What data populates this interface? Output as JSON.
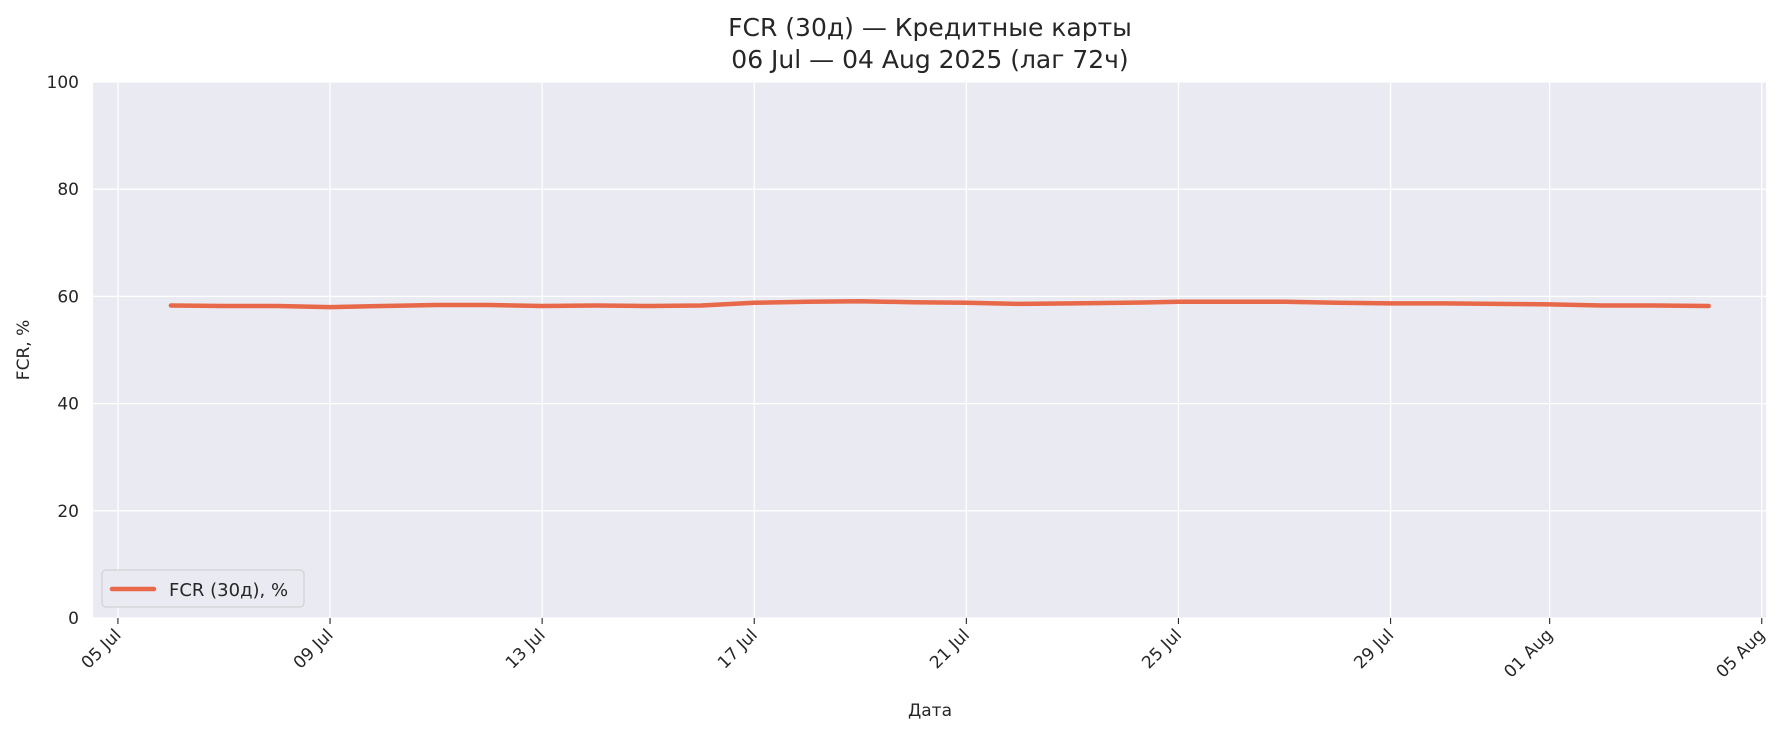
{
  "chart_data": {
    "type": "line",
    "title": "FCR (30д) — Кредитные карты",
    "subtitle": "06 Jul — 04 Aug 2025 (лаг 72ч)",
    "xlabel": "Дата",
    "ylabel": "FCR, %",
    "ylim": [
      0,
      100
    ],
    "xlim": [
      "2025-07-04",
      "2025-08-05"
    ],
    "y_ticks": [
      0,
      20,
      40,
      60,
      80,
      100
    ],
    "x_ticks": [
      {
        "date": "2025-07-05",
        "label": "05 Jul"
      },
      {
        "date": "2025-07-09",
        "label": "09 Jul"
      },
      {
        "date": "2025-07-13",
        "label": "13 Jul"
      },
      {
        "date": "2025-07-17",
        "label": "17 Jul"
      },
      {
        "date": "2025-07-21",
        "label": "21 Jul"
      },
      {
        "date": "2025-07-25",
        "label": "25 Jul"
      },
      {
        "date": "2025-07-29",
        "label": "29 Jul"
      },
      {
        "date": "2025-08-01",
        "label": "01 Aug"
      },
      {
        "date": "2025-08-05",
        "label": "05 Aug"
      }
    ],
    "grid": true,
    "legend_position": "lower-left",
    "colors": {
      "background": "#eaeaf2",
      "grid": "#ffffff",
      "series": "#e8684a"
    },
    "series": [
      {
        "name": "FCR (30д), %",
        "x": [
          "2025-07-06",
          "2025-07-07",
          "2025-07-08",
          "2025-07-09",
          "2025-07-10",
          "2025-07-11",
          "2025-07-12",
          "2025-07-13",
          "2025-07-14",
          "2025-07-15",
          "2025-07-16",
          "2025-07-17",
          "2025-07-18",
          "2025-07-19",
          "2025-07-20",
          "2025-07-21",
          "2025-07-22",
          "2025-07-23",
          "2025-07-24",
          "2025-07-25",
          "2025-07-26",
          "2025-07-27",
          "2025-07-28",
          "2025-07-29",
          "2025-07-30",
          "2025-07-31",
          "2025-08-01",
          "2025-08-02",
          "2025-08-03",
          "2025-08-04"
        ],
        "y": [
          58.3,
          58.2,
          58.2,
          58.0,
          58.2,
          58.4,
          58.4,
          58.2,
          58.3,
          58.2,
          58.3,
          58.8,
          59.0,
          59.1,
          58.9,
          58.8,
          58.6,
          58.7,
          58.8,
          59.0,
          59.0,
          59.0,
          58.8,
          58.7,
          58.7,
          58.6,
          58.5,
          58.3,
          58.3,
          58.2
        ]
      }
    ]
  }
}
